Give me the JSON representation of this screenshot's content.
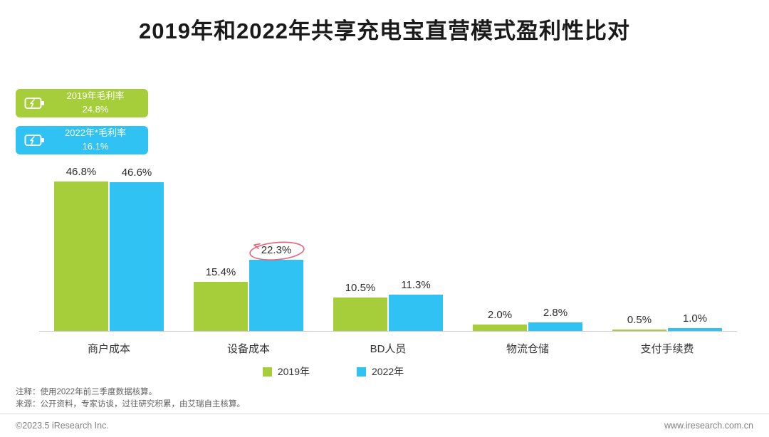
{
  "title": "2019年和2022年共享充电宝直营模式盈利性比对",
  "badges": [
    {
      "label": "2019年毛利率",
      "value": "24.8%",
      "color": "#a5ce3a"
    },
    {
      "label": "2022年*毛利率",
      "value": "16.1%",
      "color": "#2fc2f2"
    }
  ],
  "chart_data": {
    "type": "bar",
    "categories": [
      "商户成本",
      "设备成本",
      "BD人员",
      "物流仓储",
      "支付手续费"
    ],
    "series": [
      {
        "name": "2019年",
        "color": "#a5ce3a",
        "values": [
          46.8,
          15.4,
          10.5,
          2.0,
          0.5
        ]
      },
      {
        "name": "2022年",
        "color": "#2fc2f2",
        "values": [
          46.6,
          22.3,
          11.3,
          2.8,
          1.0
        ]
      }
    ],
    "value_suffix": "%",
    "ylim": [
      0,
      50
    ],
    "grid": false,
    "legend_position": "bottom",
    "highlight": {
      "category_index": 1,
      "series_index": 1,
      "style": "red-circle",
      "color": "#e9637b"
    }
  },
  "notes": {
    "note1": "注释：使用2022年前三季度数据核算。",
    "note2": "来源：公开资料，专家访谈，过往研究积累，由艾瑞自主核算。"
  },
  "footer": {
    "left": "©2023.5 iResearch Inc.",
    "right": "www.iresearch.com.cn"
  }
}
